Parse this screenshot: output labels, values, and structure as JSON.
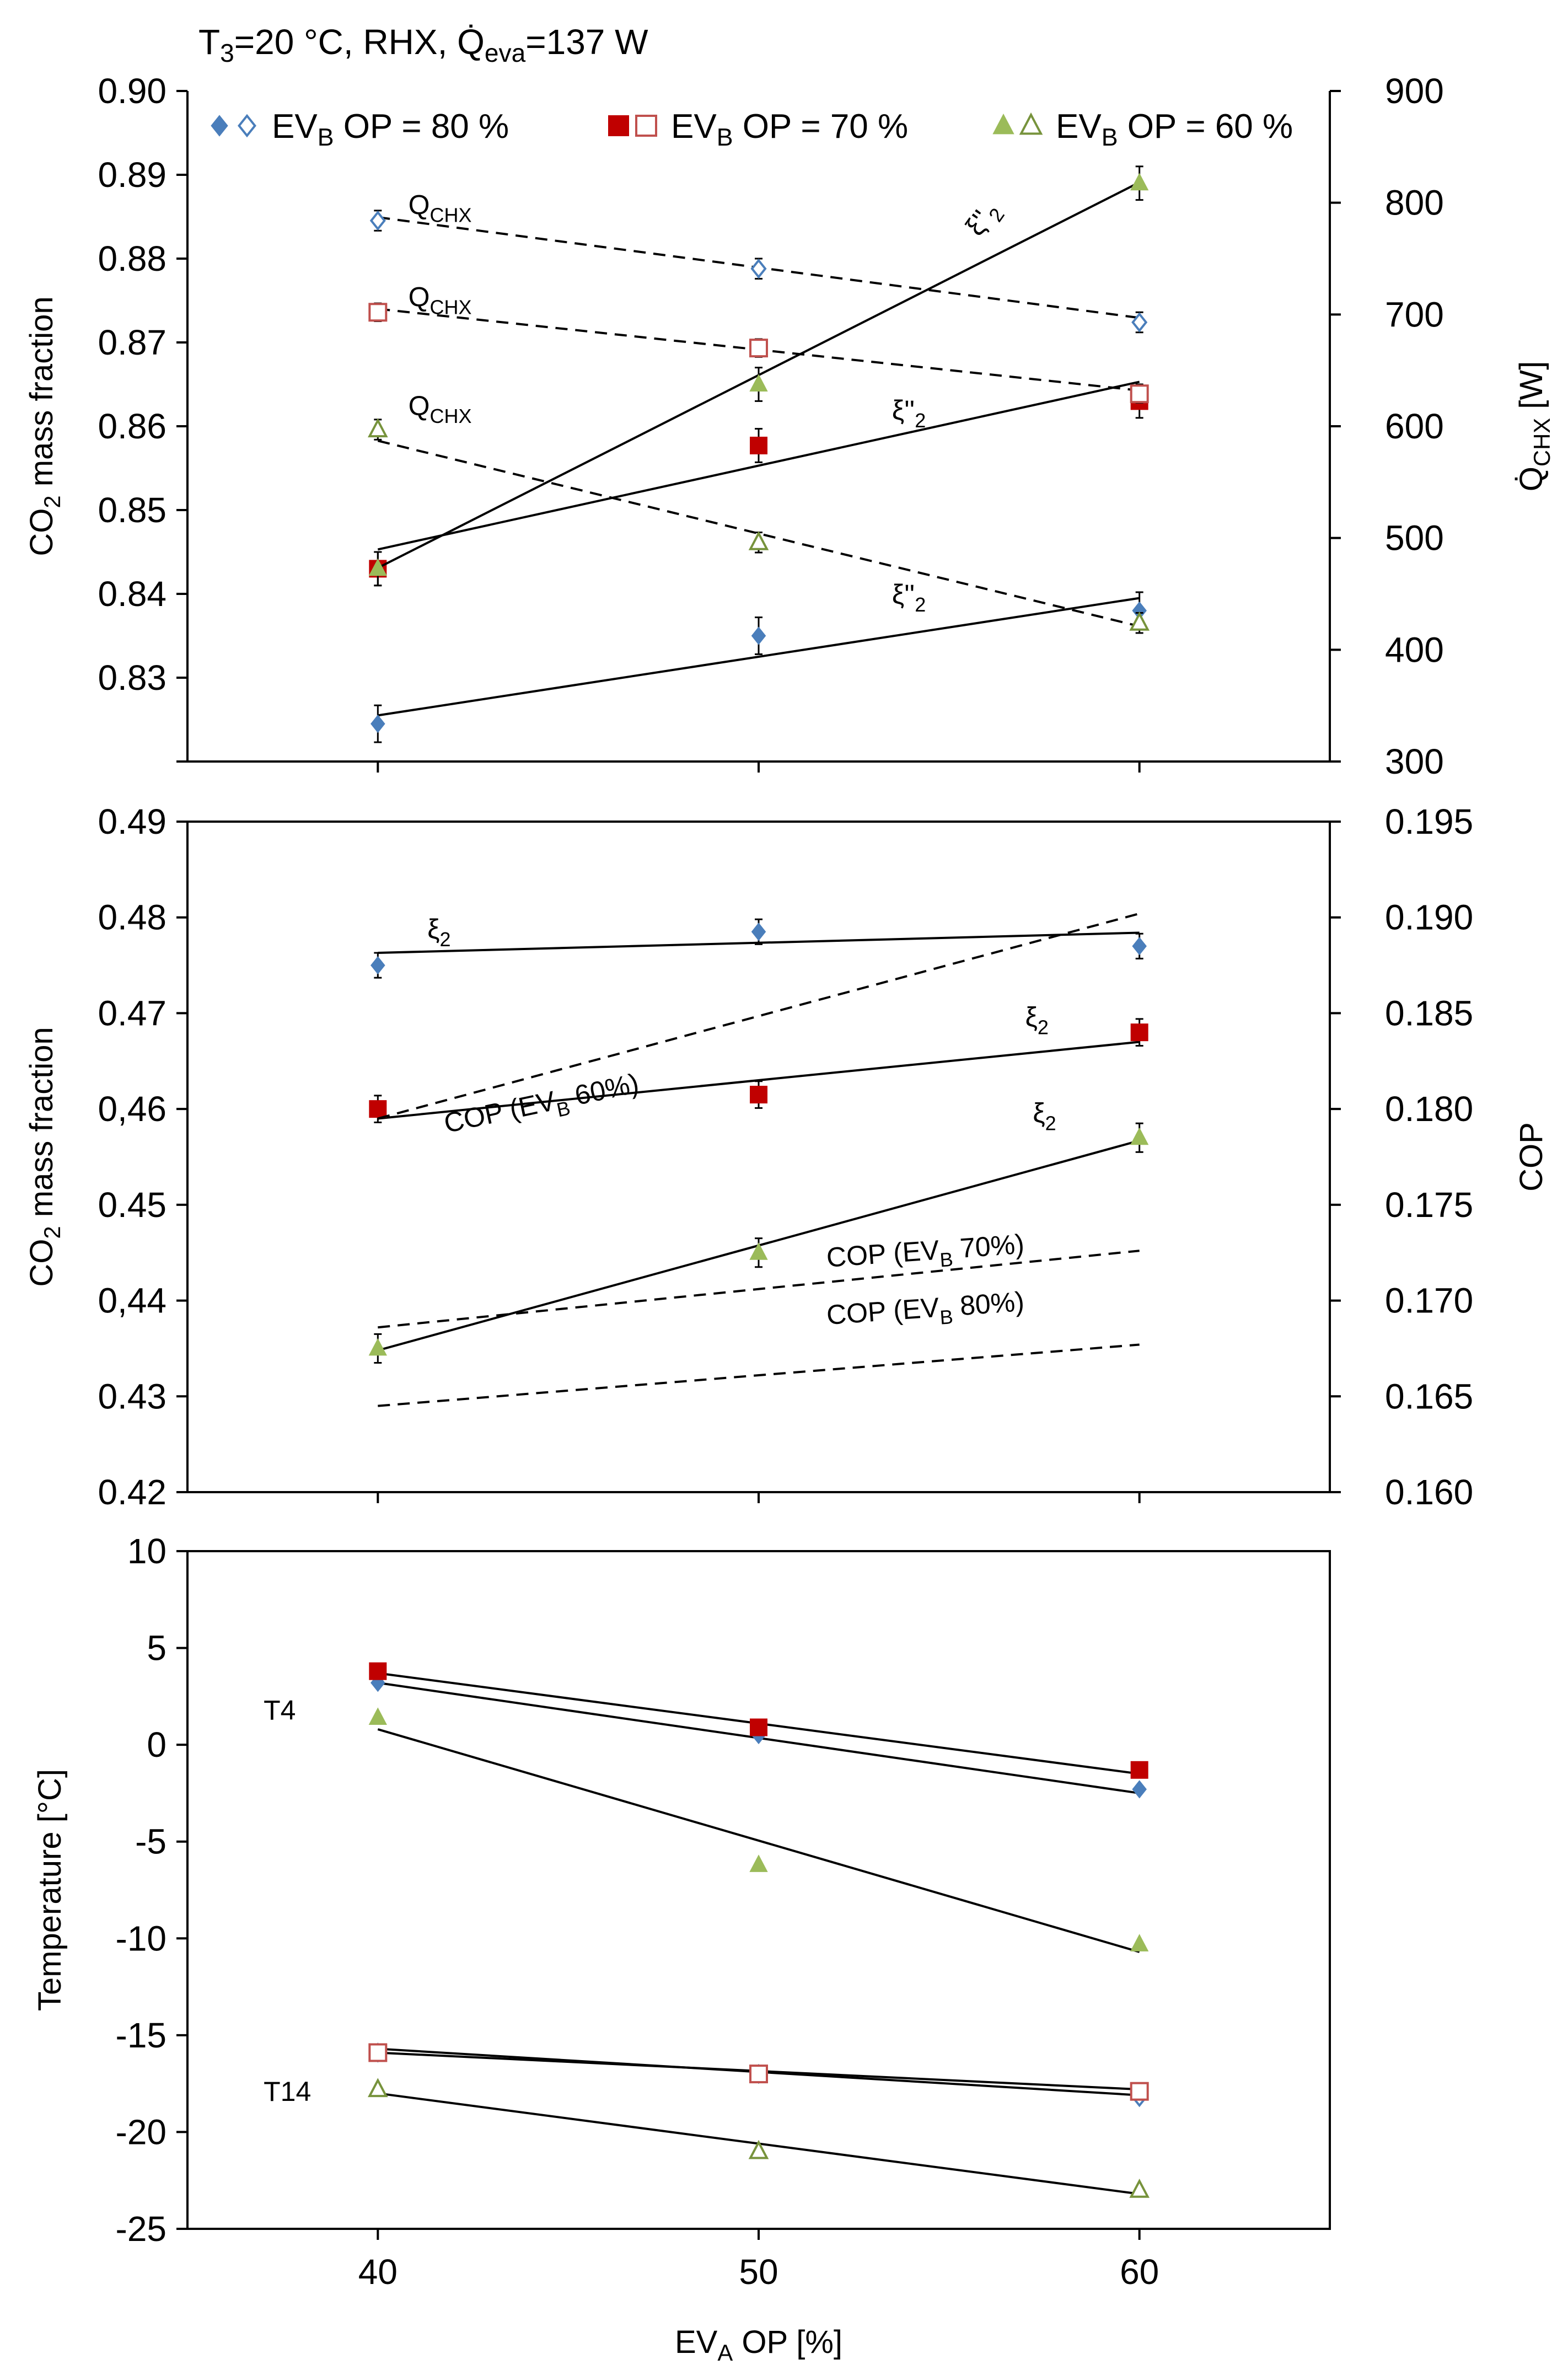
{
  "chart_data": {
    "title": "T3=20 °C, RHX, Q̇eva=137 W",
    "title_parts": {
      "t": "T",
      "t_sub": "3",
      "mid": "=20 °C, RHX, ",
      "q": "Q̇",
      "q_sub": "eva",
      "end": "=137 W"
    },
    "legend": [
      {
        "prefix": "EV",
        "sub": "B",
        "suffix": " OP = 80 %",
        "marker": "diamond",
        "color": "#4a7ebb"
      },
      {
        "prefix": "EV",
        "sub": "B",
        "suffix": " OP = 70 %",
        "marker": "square",
        "color": "#c0504d"
      },
      {
        "prefix": "EV",
        "sub": "B",
        "suffix": " OP = 60 %",
        "marker": "triangle",
        "color": "#9bbb59"
      }
    ],
    "colors": {
      "ev80": "#4a7ebb",
      "ev70": "#c0504d",
      "ev70_fill": "#c00000",
      "ev60": "#9bbb59",
      "ev60_dark": "#77933c"
    },
    "xlabel": "EV",
    "xlabel_sub": "A",
    "xlabel_suffix": " OP   [%]",
    "xlim": [
      35,
      65
    ],
    "xticks": [
      40,
      50,
      60
    ],
    "panels": [
      {
        "type": "scatter",
        "ylabel": "CO2 mass fraction",
        "ylim": [
          0.82,
          0.9
        ],
        "yticks": [
          "0.82",
          "0.83",
          "0.84",
          "0.85",
          "0.86",
          "0.87",
          "0.88",
          "0.89",
          "0.90"
        ],
        "yticks_show": [
          "",
          "0.83",
          "0.84",
          "0.85",
          "0.86",
          "0.87",
          "0.88",
          "0.89",
          "0.90"
        ],
        "y2label": "Q̇CHX [W]",
        "y2lim": [
          300,
          900
        ],
        "y2ticks": [
          "300",
          "400",
          "500",
          "600",
          "700",
          "800",
          "900"
        ],
        "series": [
          {
            "name": "ξ''2 EVB OP = 80 %",
            "axis": "y",
            "marker": "diamond",
            "filled": true,
            "x": [
              40,
              50,
              60
            ],
            "y": [
              0.8245,
              0.835,
              0.838
            ],
            "err": 0.0022,
            "fit": [
              [
                40,
                0.8255
              ],
              [
                60,
                0.8395
              ]
            ],
            "fit_style": "solid",
            "label": "ξ''",
            "label_sub": "2",
            "label_x": 53.5,
            "label_y": 0.8388
          },
          {
            "name": "ξ''2 EVB OP = 70 %",
            "axis": "y",
            "marker": "square",
            "filled": true,
            "x": [
              40,
              50,
              60
            ],
            "y": [
              0.843,
              0.8577,
              0.863
            ],
            "err": 0.002,
            "fit": [
              [
                40,
                0.8453
              ],
              [
                60,
                0.8653
              ]
            ],
            "fit_style": "solid",
            "label": "ξ''",
            "label_sub": "2",
            "label_x": 53.5,
            "label_y": 0.8608
          },
          {
            "name": "ξ''2 EVB OP = 60 %",
            "axis": "y",
            "marker": "triangle",
            "filled": true,
            "x": [
              40,
              50,
              60
            ],
            "y": [
              0.843,
              0.865,
              0.889
            ],
            "err": 0.002,
            "fit": [
              [
                40,
                0.8431
              ],
              [
                60,
                0.8891
              ]
            ],
            "fit_style": "solid",
            "label": "ξ''",
            "label_sub": "2",
            "label_x": 55.8,
            "label_y": 0.8825
          },
          {
            "name": "Q̇CHX EVB OP = 80 %",
            "axis": "y2",
            "marker": "diamond",
            "filled": false,
            "x": [
              40,
              50,
              60
            ],
            "y": [
              784,
              741,
              693
            ],
            "err": 9,
            "fit": [
              [
                40,
                787
              ],
              [
                60,
                697
              ]
            ],
            "fit_style": "dash",
            "label": "Q",
            "label_sub": "CHX",
            "label_x": 40.8,
            "label_y": 0.8853
          },
          {
            "name": "Q̇CHX EVB OP = 70 %",
            "axis": "y2",
            "marker": "square",
            "filled": false,
            "x": [
              40,
              50,
              60
            ],
            "y": [
              702,
              670,
              629
            ],
            "err": 8,
            "fit": [
              [
                40,
                705
              ],
              [
                60,
                632
              ]
            ],
            "fit_style": "dash",
            "label": "Q",
            "label_sub": "CHX",
            "label_x": 40.8,
            "label_y": 0.8743
          },
          {
            "name": "Q̇CHX EVB OP = 60 %",
            "axis": "y2",
            "marker": "triangle",
            "filled": false,
            "x": [
              40,
              50,
              60
            ],
            "y": [
              597,
              496,
              424
            ],
            "err": 9,
            "fit": [
              [
                40,
                587
              ],
              [
                60,
                421
              ]
            ],
            "fit_style": "dash",
            "label": "Q",
            "label_sub": "CHX",
            "label_x": 40.8,
            "label_y": 0.8613
          }
        ]
      },
      {
        "type": "scatter",
        "ylabel": "CO2 mass fraction",
        "ylim": [
          0.42,
          0.49
        ],
        "yticks": [
          "0.42",
          "0.43",
          "0,44",
          "0.45",
          "0,46",
          "0.47",
          "0.48",
          "0.49"
        ],
        "y2label": "COP",
        "y2lim": [
          0.16,
          0.195
        ],
        "y2ticks": [
          "0.160",
          "0.165",
          "0.170",
          "0.175",
          "0.180",
          "0.185",
          "0.190",
          "0.195"
        ],
        "series": [
          {
            "name": "ξ2 EVB OP = 80 %",
            "axis": "y",
            "marker": "diamond",
            "filled": true,
            "x": [
              40,
              50,
              60
            ],
            "y": [
              0.475,
              0.4785,
              0.477
            ],
            "err": 0.0013,
            "fit": [
              [
                40,
                0.4763
              ],
              [
                60,
                0.4784
              ]
            ],
            "fit_style": "solid",
            "label": "ξ",
            "label_sub": "2",
            "label_x": 41.3,
            "label_y": 0.4778
          },
          {
            "name": "ξ2 EVB OP = 70 %",
            "axis": "y",
            "marker": "square",
            "filled": true,
            "x": [
              40,
              50,
              60
            ],
            "y": [
              0.46,
              0.4615,
              0.468
            ],
            "err": 0.0014,
            "fit": [
              [
                40,
                0.459
              ],
              [
                60,
                0.467
              ]
            ],
            "fit_style": "solid",
            "label": "ξ",
            "label_sub": "2",
            "label_x": 57.0,
            "label_y": 0.4686
          },
          {
            "name": "ξ2 EVB OP = 60 %",
            "axis": "y",
            "marker": "triangle",
            "filled": true,
            "x": [
              40,
              50,
              60
            ],
            "y": [
              0.435,
              0.445,
              0.457
            ],
            "err": 0.0015,
            "fit": [
              [
                40,
                0.4348
              ],
              [
                60,
                0.4567
              ]
            ],
            "fit_style": "solid",
            "label": "ξ",
            "label_sub": "2",
            "label_x": 57.2,
            "label_y": 0.4586
          },
          {
            "name": "COP (EVB 60%)",
            "axis": "y2",
            "marker": "none",
            "x": [],
            "y": [],
            "fit": [
              [
                40,
                0.1795
              ],
              [
                60,
                0.1902
              ]
            ],
            "fit_style": "dash",
            "label": "COP (EV",
            "label_sub": "B",
            "label_suffix": " 60%)",
            "label_x": 41.8,
            "label_y": 0.4575,
            "label_rotate": -12
          },
          {
            "name": "COP (EVB 70%)",
            "axis": "y2",
            "marker": "none",
            "x": [],
            "y": [],
            "fit": [
              [
                40,
                0.1686
              ],
              [
                60,
                0.1726
              ]
            ],
            "fit_style": "dash",
            "label": "COP (EV",
            "label_sub": "B",
            "label_suffix": " 70%)",
            "label_x": 51.8,
            "label_y": 0.4435,
            "label_rotate": -4
          },
          {
            "name": "COP (EVB 80%)",
            "axis": "y2",
            "marker": "none",
            "x": [],
            "y": [],
            "fit": [
              [
                40,
                0.1645
              ],
              [
                60,
                0.1677
              ]
            ],
            "fit_style": "dash",
            "label": "COP (EV",
            "label_sub": "B",
            "label_suffix": " 80%)",
            "label_x": 51.8,
            "label_y": 0.4375,
            "label_rotate": -4
          }
        ]
      },
      {
        "type": "scatter",
        "ylabel": "Temperature [°C]",
        "ylim": [
          -25,
          10
        ],
        "yticks": [
          "-25",
          "-20",
          "-15",
          "-10",
          "-5",
          "0",
          "5",
          "10"
        ],
        "series": [
          {
            "name": "T4 EVB OP = 80 %",
            "axis": "y",
            "marker": "diamond",
            "filled": true,
            "x": [
              40,
              50,
              60
            ],
            "y": [
              3.2,
              0.5,
              -2.3
            ],
            "fit": [
              [
                40,
                3.2
              ],
              [
                60,
                -2.5
              ]
            ],
            "fit_style": "solid"
          },
          {
            "name": "T4 EVB OP = 70 %",
            "axis": "y",
            "marker": "square",
            "filled": true,
            "x": [
              40,
              50,
              60
            ],
            "y": [
              3.8,
              0.9,
              -1.3
            ],
            "fit": [
              [
                40,
                3.7
              ],
              [
                60,
                -1.5
              ]
            ],
            "fit_style": "solid"
          },
          {
            "name": "T4 EVB OP = 60 %",
            "axis": "y",
            "marker": "triangle",
            "filled": true,
            "x": [
              40,
              50,
              60
            ],
            "y": [
              1.4,
              -6.2,
              -10.3
            ],
            "fit": [
              [
                40,
                0.8
              ],
              [
                60,
                -10.7
              ]
            ],
            "fit_style": "solid"
          },
          {
            "name": "T14 EVB OP = 80 %",
            "axis": "y",
            "marker": "diamond",
            "filled": false,
            "x": [
              40,
              50,
              60
            ],
            "y": [
              -15.9,
              -17.0,
              -18.2
            ],
            "fit": [
              [
                40,
                -15.7
              ],
              [
                60,
                -18.1
              ]
            ],
            "fit_style": "solid"
          },
          {
            "name": "T14 EVB OP = 70 %",
            "axis": "y",
            "marker": "square",
            "filled": false,
            "x": [
              40,
              50,
              60
            ],
            "y": [
              -15.9,
              -17.0,
              -17.9
            ],
            "fit": [
              [
                40,
                -15.9
              ],
              [
                60,
                -17.8
              ]
            ],
            "fit_style": "solid"
          },
          {
            "name": "T14 EVB OP = 60 %",
            "axis": "y",
            "marker": "triangle",
            "filled": false,
            "x": [
              40,
              50,
              60
            ],
            "y": [
              -17.8,
              -21.0,
              -23.0
            ],
            "fit": [
              [
                40,
                -18.0
              ],
              [
                60,
                -23.2
              ]
            ],
            "fit_style": "solid"
          }
        ],
        "annotations": [
          {
            "text": "T4",
            "x": 37.0,
            "y": 1.3
          },
          {
            "text": "T14",
            "x": 37.0,
            "y": -18.4
          }
        ]
      }
    ]
  }
}
